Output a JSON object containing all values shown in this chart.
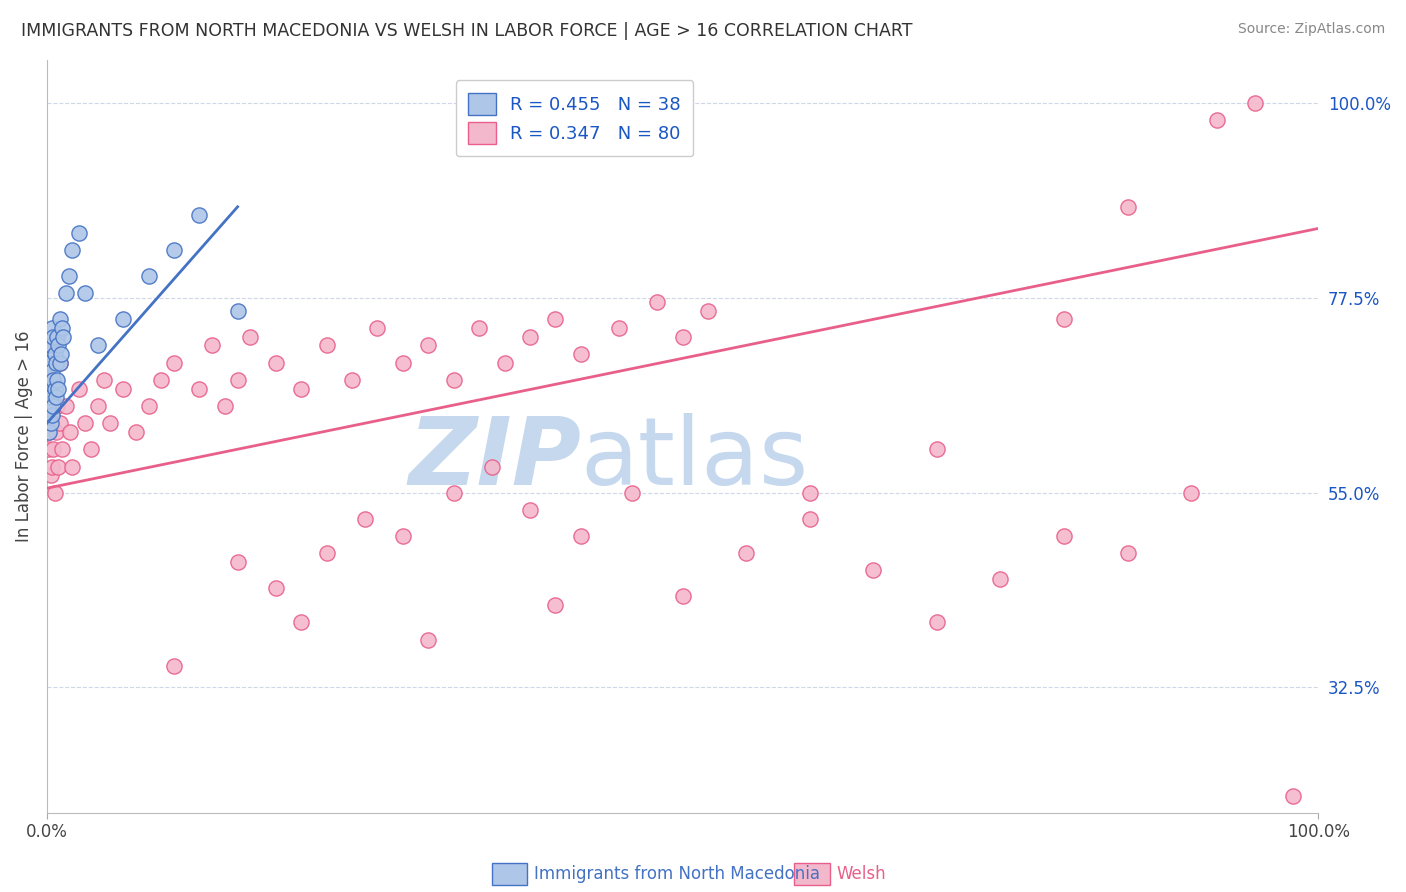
{
  "title": "IMMIGRANTS FROM NORTH MACEDONIA VS WELSH IN LABOR FORCE | AGE > 16 CORRELATION CHART",
  "source": "Source: ZipAtlas.com",
  "ylabel_label": "In Labor Force | Age > 16",
  "yticks_right": [
    0.325,
    0.55,
    0.775,
    1.0
  ],
  "ytick_labels_right": [
    "32.5%",
    "55.0%",
    "77.5%",
    "100.0%"
  ],
  "blue_color": "#4472c4",
  "pink_color": "#e8608a",
  "blue_dot_fill": "#aec6e8",
  "blue_dot_edge": "#4472c4",
  "pink_dot_fill": "#f4b8cc",
  "pink_dot_edge": "#e8608a",
  "watermark_zip": "ZIP",
  "watermark_atlas": "atlas",
  "watermark_color_zip": "#c5d8ee",
  "watermark_color_atlas": "#c5d8ee",
  "background_color": "#ffffff",
  "grid_color": "#d0d8e8",
  "legend_text_color": "#1a56c4",
  "legend_entry1": "R = 0.455   N = 38",
  "legend_entry2": "R = 0.347   N = 80",
  "bottom_label1": "Immigrants from North Macedonia",
  "bottom_label2": "Welsh",
  "blue_dots_x": [
    0.001,
    0.001,
    0.002,
    0.002,
    0.002,
    0.003,
    0.003,
    0.003,
    0.004,
    0.004,
    0.004,
    0.005,
    0.005,
    0.005,
    0.006,
    0.006,
    0.007,
    0.007,
    0.008,
    0.008,
    0.009,
    0.009,
    0.01,
    0.01,
    0.011,
    0.012,
    0.013,
    0.015,
    0.017,
    0.02,
    0.025,
    0.03,
    0.04,
    0.06,
    0.08,
    0.1,
    0.12,
    0.15
  ],
  "blue_dots_y": [
    0.65,
    0.68,
    0.62,
    0.67,
    0.7,
    0.63,
    0.66,
    0.72,
    0.64,
    0.69,
    0.74,
    0.65,
    0.68,
    0.73,
    0.67,
    0.71,
    0.66,
    0.7,
    0.68,
    0.73,
    0.67,
    0.72,
    0.7,
    0.75,
    0.71,
    0.74,
    0.73,
    0.78,
    0.8,
    0.83,
    0.85,
    0.78,
    0.72,
    0.75,
    0.8,
    0.83,
    0.87,
    0.76
  ],
  "pink_dots_x": [
    0.001,
    0.002,
    0.003,
    0.003,
    0.004,
    0.005,
    0.005,
    0.006,
    0.007,
    0.008,
    0.009,
    0.01,
    0.01,
    0.012,
    0.015,
    0.018,
    0.02,
    0.025,
    0.03,
    0.035,
    0.04,
    0.045,
    0.05,
    0.06,
    0.07,
    0.08,
    0.09,
    0.1,
    0.12,
    0.13,
    0.14,
    0.15,
    0.16,
    0.18,
    0.2,
    0.22,
    0.24,
    0.26,
    0.28,
    0.3,
    0.32,
    0.34,
    0.36,
    0.38,
    0.4,
    0.42,
    0.45,
    0.48,
    0.5,
    0.52,
    0.15,
    0.18,
    0.22,
    0.25,
    0.28,
    0.32,
    0.35,
    0.38,
    0.42,
    0.46,
    0.5,
    0.55,
    0.6,
    0.65,
    0.7,
    0.75,
    0.8,
    0.85,
    0.9,
    0.95,
    0.1,
    0.2,
    0.3,
    0.4,
    0.6,
    0.7,
    0.8,
    0.92,
    0.98,
    0.85
  ],
  "pink_dots_y": [
    0.6,
    0.62,
    0.57,
    0.72,
    0.58,
    0.6,
    0.68,
    0.55,
    0.62,
    0.65,
    0.58,
    0.63,
    0.7,
    0.6,
    0.65,
    0.62,
    0.58,
    0.67,
    0.63,
    0.6,
    0.65,
    0.68,
    0.63,
    0.67,
    0.62,
    0.65,
    0.68,
    0.7,
    0.67,
    0.72,
    0.65,
    0.68,
    0.73,
    0.7,
    0.67,
    0.72,
    0.68,
    0.74,
    0.7,
    0.72,
    0.68,
    0.74,
    0.7,
    0.73,
    0.75,
    0.71,
    0.74,
    0.77,
    0.73,
    0.76,
    0.47,
    0.44,
    0.48,
    0.52,
    0.5,
    0.55,
    0.58,
    0.53,
    0.5,
    0.55,
    0.43,
    0.48,
    0.52,
    0.46,
    0.4,
    0.45,
    0.5,
    0.48,
    0.55,
    1.0,
    0.35,
    0.4,
    0.38,
    0.42,
    0.55,
    0.6,
    0.75,
    0.98,
    0.2,
    0.88
  ],
  "blue_line_x": [
    0.0,
    0.15
  ],
  "blue_line_y": [
    0.63,
    0.88
  ],
  "pink_line_x": [
    0.0,
    1.0
  ],
  "pink_line_y": [
    0.555,
    0.855
  ],
  "xlim": [
    0.0,
    1.0
  ],
  "ylim": [
    0.18,
    1.05
  ],
  "dot_size": 120
}
